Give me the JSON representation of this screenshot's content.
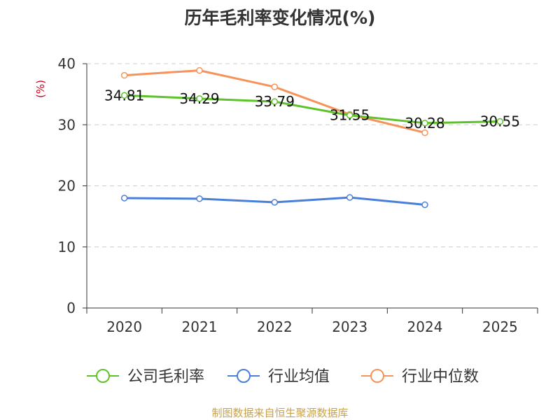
{
  "chart_data": {
    "type": "line",
    "title": "历年毛利率变化情况(%)",
    "ylabel": "(%)",
    "xlabel": "",
    "categories": [
      "2020",
      "2021",
      "2022",
      "2023",
      "2024",
      "2025"
    ],
    "ylim": [
      0,
      40
    ],
    "yticks": [
      0,
      10,
      20,
      30,
      40
    ],
    "grid": true,
    "legend_position": "bottom",
    "series": [
      {
        "name": "公司毛利率",
        "values": [
          34.81,
          34.29,
          33.79,
          31.55,
          30.28,
          30.55
        ],
        "labels": [
          "34.81",
          "34.29",
          "33.79",
          "31.55",
          "30.28",
          "30.55"
        ],
        "color": "#5ec329"
      },
      {
        "name": "行业均值",
        "values": [
          18.0,
          17.9,
          17.3,
          18.1,
          16.9,
          null
        ],
        "color": "#4a7fd9"
      },
      {
        "name": "行业中位数",
        "values": [
          38.1,
          38.9,
          36.2,
          31.7,
          28.7,
          null
        ],
        "color": "#f5935a"
      }
    ]
  },
  "colors": {
    "title": "#333333",
    "axis": "#333333",
    "ylabel": "#d0021b",
    "source": "#c8a24a",
    "grid": "#cccccc"
  },
  "source_text": "制图数据来自恒生聚源数据库"
}
